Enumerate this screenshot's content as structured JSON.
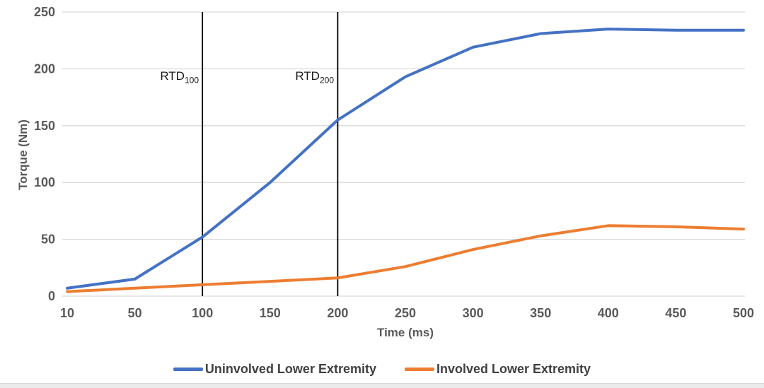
{
  "chart_data": {
    "type": "line",
    "title": "",
    "xlabel": "Time (ms)",
    "ylabel": "Torque (Nm)",
    "categories": [
      "10",
      "50",
      "100",
      "150",
      "200",
      "250",
      "300",
      "350",
      "400",
      "450",
      "500"
    ],
    "ylim": [
      0,
      250
    ],
    "yticks": [
      0,
      50,
      100,
      150,
      200,
      250
    ],
    "grid": "horizontal",
    "gridline_color": "#D9D9D9",
    "legend_position": "bottom",
    "series": [
      {
        "name": "Uninvolved Lower Extremity",
        "color": "#4472C4",
        "values": [
          7,
          15,
          52,
          100,
          155,
          193,
          219,
          231,
          235,
          234,
          234
        ]
      },
      {
        "name": "Involved Lower Extremity",
        "color": "#ED7D31",
        "values": [
          4,
          7,
          10,
          13,
          16,
          26,
          41,
          53,
          62,
          61,
          59
        ]
      }
    ],
    "annotations": [
      {
        "label": "RTD",
        "subscript": "100",
        "category": "100",
        "line_color": "#000000"
      },
      {
        "label": "RTD",
        "subscript": "200",
        "category": "200",
        "line_color": "#000000"
      }
    ],
    "axis_text_color": "#595959",
    "legend_text_color": "#404040"
  }
}
